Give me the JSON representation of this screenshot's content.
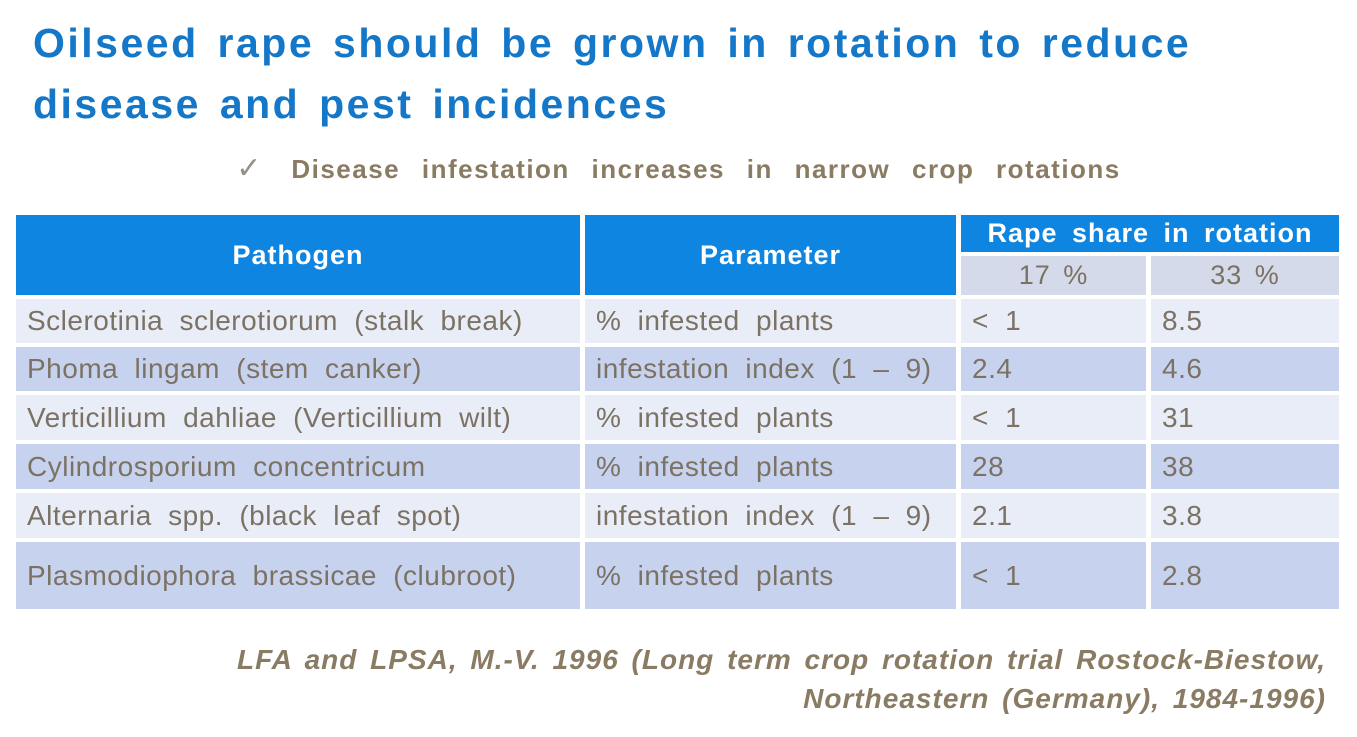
{
  "slide": {
    "title_lines": [
      "Oilseed rape should be grown in rotation to reduce",
      "disease and pest incidences"
    ],
    "bullet": {
      "check": "✓",
      "text": "Disease infestation increases in narrow crop rotations"
    },
    "table": {
      "headers": {
        "pathogen": "Pathogen",
        "parameter": "Parameter",
        "group": "Rape share in rotation"
      },
      "sub_headers": [
        "17 %",
        "33 %"
      ],
      "rows": [
        {
          "pathogen": "Sclerotinia sclerotiorum (stalk break)",
          "parameter": "% infested plants",
          "share17": "< 1",
          "share33": "8.5"
        },
        {
          "pathogen": "Phoma lingam (stem canker)",
          "parameter": "infestation index (1 – 9)",
          "share17": "2.4",
          "share33": "4.6"
        },
        {
          "pathogen": "Verticillium dahliae (Verticillium wilt)",
          "parameter": "% infested plants",
          "share17": "< 1",
          "share33": "31"
        },
        {
          "pathogen": "Cylindrosporium concentricum",
          "parameter": "% infested plants",
          "share17": "28",
          "share33": "38"
        },
        {
          "pathogen": "Alternaria spp. (black leaf spot)",
          "parameter": "infestation index (1 – 9)",
          "share17": "2.1",
          "share33": "3.8"
        },
        {
          "pathogen": "Plasmodiophora brassicae (clubroot)",
          "parameter": "% infested plants",
          "share17": "< 1",
          "share33": "2.8"
        }
      ]
    },
    "footer_lines": [
      "LFA and LPSA, M.-V. 1996 (Long term crop rotation trial Rostock-Biestow,",
      "Northeastern (Germany), 1984-1996)"
    ],
    "colors": {
      "title-blue": "#1477C8",
      "header-blue": "#0E85E0",
      "row-light": "#E9EDF8",
      "row-dark": "#C7D3EE",
      "subheader-bg": "#D4DAE9",
      "cell-text": "#7B7264",
      "accent-brown": "#8A7B63",
      "check-gray": "#95918A"
    }
  }
}
